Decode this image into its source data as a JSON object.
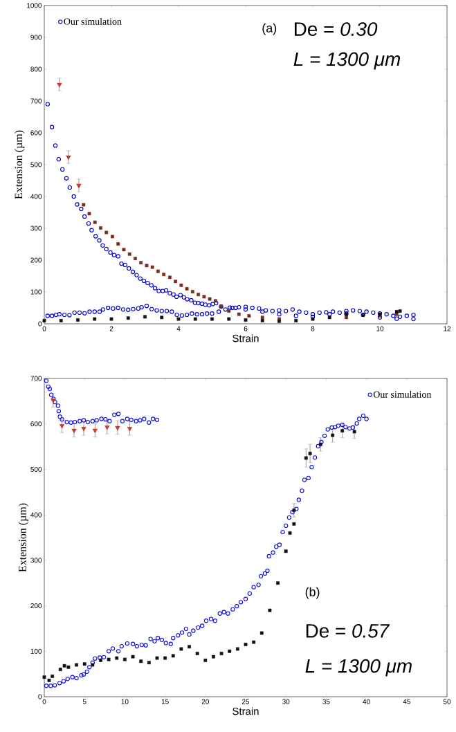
{
  "chart_data": [
    {
      "type": "scatter",
      "xlabel": "Strain",
      "ylabel": "Extension (µm)",
      "xlim": [
        0,
        12
      ],
      "ylim": [
        0,
        1000
      ],
      "xticks": [
        0,
        2,
        4,
        6,
        8,
        10,
        12
      ],
      "yticks": [
        0,
        100,
        200,
        300,
        400,
        500,
        600,
        700,
        800,
        900,
        1000
      ],
      "legend": "top left",
      "annotations": [
        "(a)",
        "De = *0.30*",
        "L = 1300 μm"
      ],
      "series": [
        {
          "name": "Our simulation",
          "color": "#0000cc",
          "marker": "circle",
          "x": [
            0.1,
            0.23,
            0.33,
            0.43,
            0.54,
            0.66,
            0.76,
            0.88,
            0.98,
            1.1,
            1.2,
            1.32,
            1.41,
            1.53,
            1.64,
            1.74,
            1.85,
            1.97,
            2.08,
            2.2,
            2.3,
            2.41,
            2.52,
            2.64,
            2.75,
            2.86,
            2.97,
            3.08,
            3.19,
            3.3,
            3.41,
            3.53,
            3.63,
            3.74,
            3.85,
            3.94,
            4.06,
            4.16,
            4.26,
            4.38,
            4.49,
            4.59,
            4.7,
            4.8,
            4.91,
            5.02,
            5.12,
            5.27,
            5.53,
            5.7,
            6.0,
            6.5,
            7.0,
            7.5,
            8.0,
            8.5,
            9.0,
            9.5,
            10.0,
            10.5,
            11.0,
            0.1,
            0.23,
            0.35,
            0.45,
            0.6,
            0.75,
            0.9,
            1.05,
            1.2,
            1.35,
            1.5,
            1.65,
            1.75,
            1.9,
            2.05,
            2.2,
            2.35,
            2.5,
            2.65,
            2.8,
            2.9,
            3.05,
            3.2,
            3.35,
            3.5,
            3.65,
            3.8,
            3.95,
            4.1,
            4.25,
            4.4,
            4.55,
            4.7,
            4.85,
            5.0,
            5.2,
            5.4,
            5.6,
            5.8,
            6.0,
            6.2,
            6.4,
            6.6,
            6.8,
            7.0,
            7.2,
            7.4,
            7.6,
            7.8,
            8.0,
            8.2,
            8.4,
            8.6,
            8.8,
            9.0,
            9.2,
            9.4,
            9.6,
            9.8,
            10.0,
            10.2,
            10.4,
            10.6,
            10.8,
            11.0
          ],
          "values": [
            690,
            618,
            560,
            517,
            485,
            457,
            428,
            400,
            375,
            361,
            337,
            315,
            294,
            275,
            262,
            246,
            235,
            224,
            216,
            212,
            189,
            185,
            174,
            163,
            153,
            142,
            135,
            128,
            121,
            112,
            103,
            103,
            105,
            96,
            92,
            85,
            90,
            83,
            77,
            74,
            66,
            65,
            63,
            60,
            58,
            62,
            65,
            54,
            51,
            50,
            45,
            38,
            30,
            25,
            22,
            30,
            32,
            28,
            20,
            16,
            15,
            25,
            25,
            28,
            30,
            28,
            27,
            35,
            35,
            33,
            38,
            38,
            38,
            45,
            50,
            48,
            50,
            45,
            44,
            46,
            48,
            52,
            56,
            46,
            42,
            40,
            40,
            38,
            28,
            26,
            28,
            32,
            30,
            30,
            32,
            32,
            38,
            45,
            50,
            52,
            53,
            50,
            48,
            42,
            40,
            42,
            40,
            45,
            38,
            35,
            30,
            35,
            36,
            38,
            35,
            40,
            42,
            40,
            38,
            35,
            32,
            30,
            25,
            22,
            25,
            28
          ]
        },
        {
          "color": "#c23b2e",
          "marker": "triangle",
          "x": [
            0.45,
            0.72,
            1.03
          ],
          "values": [
            752,
            524,
            435
          ],
          "errors": [
            20,
            20,
            20
          ]
        },
        {
          "color": "#7b2a1e",
          "marker": "square",
          "x": [
            1.17,
            1.34,
            1.51,
            1.68,
            1.85,
            2.03,
            2.2,
            2.37,
            2.54,
            2.71,
            2.88,
            3.05,
            3.22,
            3.39,
            3.56,
            3.74,
            3.91,
            4.08,
            4.25,
            4.42,
            4.59,
            4.76,
            4.93,
            5.1,
            5.27,
            5.5,
            5.8,
            6.1,
            6.5,
            7.0,
            7.5,
            8.0,
            8.5,
            9.0,
            9.5,
            10.0,
            10.5
          ],
          "values": [
            374,
            346,
            319,
            301,
            287,
            274,
            251,
            233,
            219,
            205,
            192,
            183,
            178,
            165,
            155,
            146,
            133,
            121,
            110,
            101,
            92,
            85,
            78,
            72,
            55,
            40,
            30,
            25,
            20,
            15,
            null,
            null,
            null,
            20,
            null,
            25,
            30
          ]
        },
        {
          "color": "#111111",
          "marker": "square",
          "x": [
            0,
            0.5,
            1,
            1.5,
            2,
            2.5,
            3,
            3.5,
            4,
            4.5,
            5,
            5.5,
            6,
            6.5,
            7,
            7.5,
            8,
            8.5,
            9,
            9.5,
            10,
            10.5,
            10.6
          ],
          "values": [
            10,
            10,
            12,
            15,
            15,
            18,
            22,
            20,
            15,
            15,
            15,
            15,
            12,
            10,
            8,
            10,
            15,
            20,
            30,
            28,
            30,
            38,
            40
          ]
        }
      ]
    },
    {
      "type": "scatter",
      "xlabel": "Strain",
      "ylabel": "Extension (µm)",
      "xlim": [
        0,
        50
      ],
      "ylim": [
        0,
        700
      ],
      "xticks": [
        0,
        5,
        10,
        15,
        20,
        25,
        30,
        35,
        40,
        45,
        50
      ],
      "yticks": [
        0,
        100,
        200,
        300,
        400,
        500,
        600,
        700
      ],
      "legend": "top right",
      "annotations": [
        "(b)",
        "De = *0.57*",
        "L = 1300 μm"
      ],
      "series": [
        {
          "name": "Our simulation",
          "color": "#1010e0",
          "marker": "circle",
          "x": [
            0.25,
            0.5,
            0.68,
            0.86,
            1.15,
            1.33,
            1.7,
            1.8,
            1.94,
            2.2,
            2.8,
            3.3,
            3.8,
            4.4,
            4.9,
            5.4,
            6,
            6.5,
            7.1,
            7.6,
            8.1,
            8.7,
            9.2,
            9.7,
            10.3,
            10.8,
            11.4,
            11.9,
            12.4,
            13,
            13.5,
            14,
            27.9,
            28.4,
            28.8,
            29.2,
            29.6,
            30.0,
            30.4,
            30.8,
            31.3,
            31.6,
            32,
            32.3,
            32.8,
            33.2,
            33.6,
            34,
            34.4,
            34.8,
            35.2,
            35.7,
            36.1,
            36.5,
            37,
            37.4,
            37.9,
            38.3,
            38.8,
            39.1,
            39.6,
            40,
            0.25,
            0.8,
            1.3,
            1.9,
            2.4,
            2.9,
            3.5,
            4.0,
            4.6,
            4.9,
            5.3,
            5.6,
            6.0,
            6.3,
            6.9,
            7.4,
            8,
            8.5,
            9.2,
            9.6,
            10.3,
            11,
            11.5,
            12.1,
            12.6,
            13.2,
            13.7,
            14.1,
            14.6,
            15.1,
            15.7,
            16,
            16.6,
            17.1,
            17.6,
            18,
            18.5,
            19.1,
            19.6,
            20.1,
            20.7,
            21.2,
            21.8,
            22.3,
            22.8,
            23.4,
            23.9,
            24.4,
            25,
            25.5,
            26,
            26.6,
            26.9,
            27.4,
            27.7
          ],
          "values": [
            695,
            682,
            677,
            664,
            655,
            648,
            640,
            628,
            616,
            610,
            604,
            603,
            604,
            606,
            608,
            604,
            606,
            608,
            611,
            610,
            606,
            620,
            622,
            606,
            611,
            609,
            606,
            608,
            611,
            603,
            611,
            609,
            309,
            317,
            330,
            334,
            362,
            376,
            394,
            406,
            413,
            433,
            453,
            477,
            481,
            505,
            526,
            551,
            560,
            574,
            588,
            592,
            593,
            596,
            598,
            593,
            590,
            592,
            601,
            611,
            618,
            611,
            24,
            24,
            25,
            30,
            34,
            39,
            43,
            41,
            47,
            49,
            55,
            65,
            75,
            84,
            86,
            87,
            100,
            106,
            100,
            111,
            117,
            116,
            111,
            114,
            113,
            127,
            122,
            129,
            125,
            118,
            116,
            129,
            135,
            141,
            149,
            137,
            145,
            152,
            156,
            167,
            171,
            167,
            183,
            186,
            183,
            192,
            199,
            208,
            215,
            227,
            241,
            246,
            265,
            271,
            277
          ]
        },
        {
          "color": "#c23b2e",
          "marker": "triangle",
          "x": [
            1.1,
            2.2,
            3.7,
            4.9,
            6.3,
            7.8,
            9.1,
            10.6
          ],
          "values": [
            652,
            596,
            586,
            590,
            586,
            593,
            592,
            590
          ],
          "errors": [
            15,
            15,
            15,
            15,
            15,
            15,
            15,
            15
          ]
        },
        {
          "color": "#111111",
          "marker": "square",
          "x": [
            0,
            0.6,
            1,
            2,
            2.5,
            3,
            4,
            5,
            6,
            7,
            8,
            9,
            10,
            11,
            12,
            13,
            14,
            15,
            16,
            17,
            18,
            19,
            20,
            21,
            22,
            23,
            24,
            25,
            26,
            27,
            28,
            29,
            30,
            30.5,
            31
          ],
          "values": [
            43,
            36,
            45,
            60,
            68,
            65,
            70,
            72,
            70,
            80,
            82,
            85,
            82,
            88,
            78,
            75,
            85,
            85,
            90,
            105,
            110,
            95,
            80,
            88,
            95,
            100,
            105,
            115,
            120,
            140,
            190,
            250,
            320,
            360,
            380
          ]
        },
        {
          "color": "#111111",
          "marker": "square",
          "x": [
            31,
            32.5,
            33,
            34.3,
            35.8,
            37,
            38.5
          ],
          "values": [
            410,
            525,
            535,
            555,
            575,
            585,
            583
          ],
          "errors": [
            15,
            20,
            20,
            15,
            15,
            15,
            15
          ]
        }
      ]
    }
  ]
}
